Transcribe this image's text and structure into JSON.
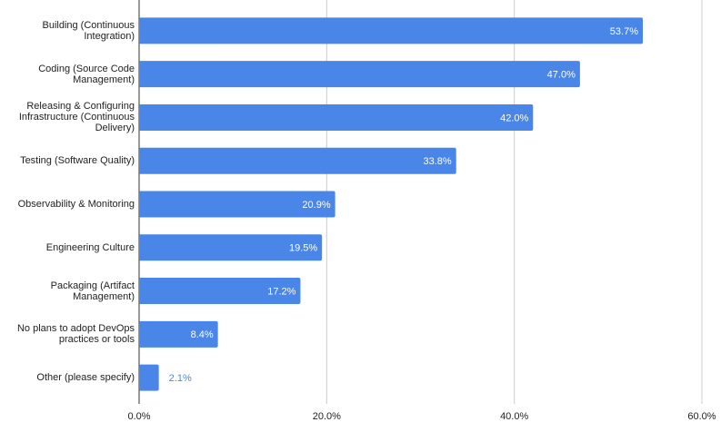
{
  "chart_data": {
    "type": "bar",
    "orientation": "horizontal",
    "categories": [
      "Building (Continuous Integration)",
      "Coding (Source Code Management)",
      "Releasing & Configuring Infrastructure (Continuous Delivery)",
      "Testing (Software Quality)",
      "Observability & Monitoring",
      "Engineering Culture",
      "Packaging (Artifact Management)",
      "No plans to adopt DevOps practices or tools",
      "Other (please specify)"
    ],
    "values": [
      53.7,
      47.0,
      42.0,
      33.8,
      20.9,
      19.5,
      17.2,
      8.4,
      2.1
    ],
    "value_labels": [
      "53.7%",
      "47.0%",
      "42.0%",
      "33.8%",
      "20.9%",
      "19.5%",
      "17.2%",
      "8.4%",
      "2.1%"
    ],
    "color": "#4a86e8",
    "xlim": [
      0,
      60
    ],
    "xticks": [
      {
        "value": 0,
        "label": "0.0%"
      },
      {
        "value": 20,
        "label": "20.0%"
      },
      {
        "value": 40,
        "label": "40.0%"
      },
      {
        "value": 60,
        "label": "60.0%"
      }
    ],
    "grid": true
  }
}
